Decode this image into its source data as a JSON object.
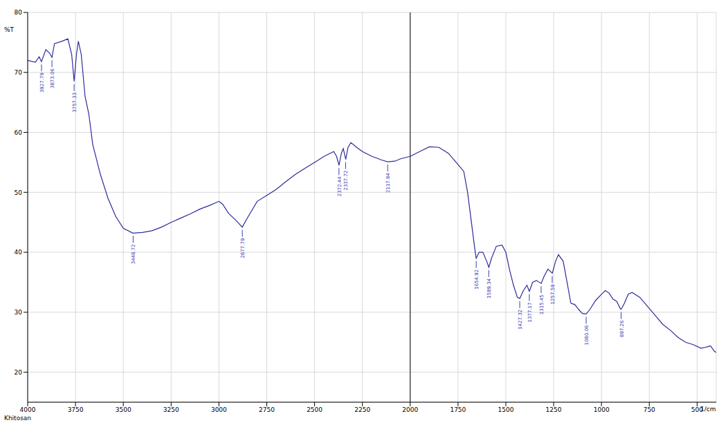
{
  "chart_data": {
    "type": "line",
    "y_label": "%T",
    "x_label": "1/cm",
    "sample": "Khitosan",
    "color": "#2b2b9b",
    "grid": true,
    "xlim": [
      4000,
      400
    ],
    "ylim": [
      15,
      80
    ],
    "xticks": [
      4000,
      3750,
      3500,
      3250,
      3000,
      2750,
      2500,
      2250,
      2000,
      1750,
      1500,
      1250,
      1000,
      750,
      500
    ],
    "yticks": [
      20,
      30,
      40,
      50,
      60,
      70,
      80
    ],
    "reference_x": 2000,
    "x": [
      4000,
      3960,
      3940,
      3928,
      3905,
      3885,
      3873,
      3860,
      3820,
      3790,
      3770,
      3757,
      3745,
      3735,
      3720,
      3700,
      3680,
      3660,
      3620,
      3580,
      3540,
      3500,
      3450,
      3400,
      3350,
      3300,
      3250,
      3200,
      3150,
      3100,
      3050,
      3000,
      2980,
      2950,
      2910,
      2878,
      2850,
      2800,
      2750,
      2700,
      2650,
      2600,
      2550,
      2500,
      2450,
      2400,
      2385,
      2372,
      2360,
      2350,
      2337,
      2325,
      2310,
      2280,
      2250,
      2200,
      2150,
      2118,
      2080,
      2050,
      2000,
      1950,
      1900,
      1850,
      1800,
      1760,
      1720,
      1700,
      1680,
      1660,
      1655,
      1640,
      1620,
      1600,
      1589,
      1575,
      1550,
      1520,
      1500,
      1480,
      1460,
      1440,
      1427,
      1410,
      1390,
      1377,
      1360,
      1340,
      1315,
      1300,
      1280,
      1257,
      1240,
      1225,
      1200,
      1180,
      1160,
      1140,
      1120,
      1100,
      1080,
      1060,
      1030,
      1000,
      980,
      960,
      940,
      920,
      900,
      897,
      880,
      860,
      840,
      800,
      760,
      720,
      680,
      640,
      600,
      560,
      520,
      480,
      450,
      430,
      410,
      400
    ],
    "values": [
      72,
      71.7,
      72.6,
      71.8,
      73.8,
      73.2,
      72.5,
      74.8,
      75.2,
      75.6,
      73,
      68.5,
      73,
      75.2,
      73,
      66,
      63,
      58,
      53,
      49,
      46,
      44,
      43.2,
      43.3,
      43.6,
      44.2,
      45,
      45.7,
      46.4,
      47.2,
      47.8,
      48.5,
      48,
      46.5,
      45.3,
      44.2,
      45.8,
      48.5,
      49.5,
      50.5,
      51.8,
      53,
      54,
      55,
      56,
      56.8,
      56,
      54.5,
      56.5,
      57.3,
      55.5,
      57.5,
      58.3,
      57.5,
      56.8,
      56,
      55.4,
      55.1,
      55.2,
      55.6,
      56,
      56.8,
      57.6,
      57.5,
      56.5,
      55,
      53.5,
      50,
      45,
      40,
      39,
      40,
      40,
      38.5,
      37.5,
      39,
      41,
      41.2,
      40,
      37,
      34.5,
      32.5,
      32.3,
      33.5,
      34.5,
      33.5,
      35,
      35.3,
      34.8,
      36,
      37.2,
      36.5,
      38.5,
      39.6,
      38.5,
      35,
      31.5,
      31.3,
      30.5,
      29.8,
      29.7,
      30.5,
      32,
      33,
      33.6,
      33.2,
      32.2,
      31.8,
      30.5,
      30.5,
      31.5,
      33,
      33.3,
      32.5,
      31,
      29.5,
      28,
      27,
      25.8,
      25,
      24.6,
      24,
      24.2,
      24.4,
      23.5,
      23.3
    ],
    "peaks": [
      {
        "x": 3927.79,
        "y": 71.8,
        "label": "3927.79"
      },
      {
        "x": 3873.06,
        "y": 72.5,
        "label": "3873.06"
      },
      {
        "x": 3757.33,
        "y": 68.5,
        "label": "3757.33"
      },
      {
        "x": 3448.72,
        "y": 43.2,
        "label": "3448.72"
      },
      {
        "x": 2877.79,
        "y": 44.2,
        "label": "2877.79"
      },
      {
        "x": 2372.44,
        "y": 54.5,
        "label": "2372.44"
      },
      {
        "x": 2337.72,
        "y": 55.5,
        "label": "2337.72"
      },
      {
        "x": 2117.84,
        "y": 55.1,
        "label": "2117.84"
      },
      {
        "x": 1654.92,
        "y": 39,
        "label": "1654.92"
      },
      {
        "x": 1589.34,
        "y": 37.5,
        "label": "1589.34"
      },
      {
        "x": 1427.32,
        "y": 32.3,
        "label": "1427.32"
      },
      {
        "x": 1377.17,
        "y": 33.5,
        "label": "1377.17"
      },
      {
        "x": 1315.45,
        "y": 34.8,
        "label": "1315.45"
      },
      {
        "x": 1257.59,
        "y": 36.5,
        "label": "1257.59"
      },
      {
        "x": 1080.06,
        "y": 29.7,
        "label": "1080.06"
      },
      {
        "x": 897.26,
        "y": 30.5,
        "label": "897.26"
      }
    ]
  }
}
